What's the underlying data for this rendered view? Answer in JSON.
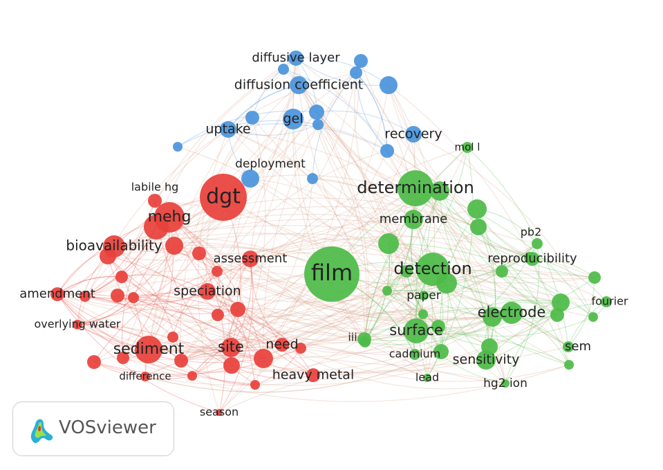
{
  "nodes": [
    {
      "label": "diffusive layer"
    },
    {
      "label": "diffusion coefficient"
    },
    {
      "label": "uptake"
    },
    {
      "label": "gel"
    },
    {
      "label": "recovery"
    },
    {
      "label": "deployment"
    },
    {
      "label": "dgt"
    },
    {
      "label": "labile hg"
    },
    {
      "label": "mehg"
    },
    {
      "label": "bioavailability"
    },
    {
      "label": "assessment"
    },
    {
      "label": "amendment"
    },
    {
      "label": "speciation"
    },
    {
      "label": "overlying water"
    },
    {
      "label": "sediment"
    },
    {
      "label": "site"
    },
    {
      "label": "need"
    },
    {
      "label": "difference"
    },
    {
      "label": "heavy metal"
    },
    {
      "label": "season"
    },
    {
      "label": "determination"
    },
    {
      "label": "membrane"
    },
    {
      "label": "film"
    },
    {
      "label": "detection"
    },
    {
      "label": "mol l"
    },
    {
      "label": "pb2"
    },
    {
      "label": "reproducibility"
    },
    {
      "label": "paper"
    },
    {
      "label": "electrode"
    },
    {
      "label": "fourier"
    },
    {
      "label": "iii"
    },
    {
      "label": "surface"
    },
    {
      "label": "cadmium"
    },
    {
      "label": "sensitivity"
    },
    {
      "label": "sem"
    },
    {
      "label": "lead"
    },
    {
      "label": "hg2 ion"
    }
  ],
  "logo": {
    "text": "VOSviewer"
  }
}
